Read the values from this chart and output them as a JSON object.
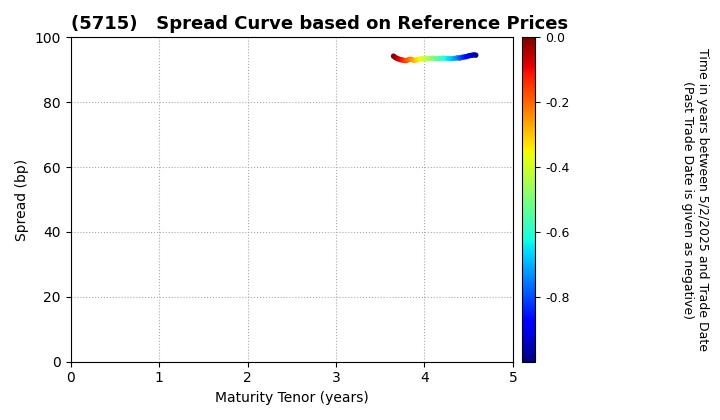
{
  "title": "(5715)   Spread Curve based on Reference Prices",
  "xlabel": "Maturity Tenor (years)",
  "ylabel": "Spread (bp)",
  "colorbar_label": "Time in years between 5/2/2025 and Trade Date\n(Past Trade Date is given as negative)",
  "xlim": [
    0,
    5
  ],
  "ylim": [
    0,
    100
  ],
  "xticks": [
    0,
    1,
    2,
    3,
    4,
    5
  ],
  "yticks": [
    0,
    20,
    40,
    60,
    80,
    100
  ],
  "colorbar_ticks": [
    0.0,
    -0.2,
    -0.4,
    -0.6,
    -0.8
  ],
  "cmap_vmin": -1.0,
  "cmap_vmax": 0.0,
  "background_color": "#ffffff",
  "scatter_x": [
    3.65,
    3.67,
    3.69,
    3.71,
    3.73,
    3.75,
    3.77,
    3.79,
    3.81,
    3.83,
    3.85,
    3.87,
    3.89,
    3.91,
    3.93,
    3.96,
    3.98,
    4.0,
    4.03,
    4.06,
    4.09,
    4.12,
    4.15,
    4.18,
    4.21,
    4.24,
    4.27,
    4.3,
    4.33,
    4.36,
    4.38,
    4.4,
    4.42,
    4.44,
    4.46,
    4.48,
    4.5,
    4.52,
    4.54,
    4.56,
    4.58
  ],
  "scatter_y": [
    94.2,
    93.8,
    93.5,
    93.3,
    93.1,
    93.0,
    92.9,
    92.8,
    93.0,
    93.2,
    93.2,
    93.0,
    92.9,
    93.0,
    93.2,
    93.4,
    93.3,
    93.5,
    93.4,
    93.5,
    93.6,
    93.5,
    93.4,
    93.5,
    93.6,
    93.5,
    93.5,
    93.4,
    93.5,
    93.6,
    93.7,
    93.6,
    93.8,
    93.9,
    94.0,
    94.1,
    94.3,
    94.4,
    94.5,
    94.6,
    94.5
  ],
  "scatter_c": [
    0.0,
    -0.02,
    -0.04,
    -0.07,
    -0.09,
    -0.11,
    -0.14,
    -0.16,
    -0.19,
    -0.21,
    -0.24,
    -0.26,
    -0.28,
    -0.31,
    -0.33,
    -0.36,
    -0.38,
    -0.4,
    -0.43,
    -0.46,
    -0.48,
    -0.51,
    -0.54,
    -0.57,
    -0.59,
    -0.62,
    -0.65,
    -0.67,
    -0.7,
    -0.73,
    -0.75,
    -0.78,
    -0.8,
    -0.83,
    -0.85,
    -0.87,
    -0.89,
    -0.91,
    -0.93,
    -0.95,
    -0.97
  ],
  "marker_size": 15,
  "title_fontsize": 13,
  "axis_fontsize": 10,
  "tick_fontsize": 10,
  "colorbar_fontsize": 9,
  "colorbar_tick_fontsize": 9,
  "grid_color": "#aaaaaa",
  "grid_linestyle": ":",
  "grid_linewidth": 0.8
}
